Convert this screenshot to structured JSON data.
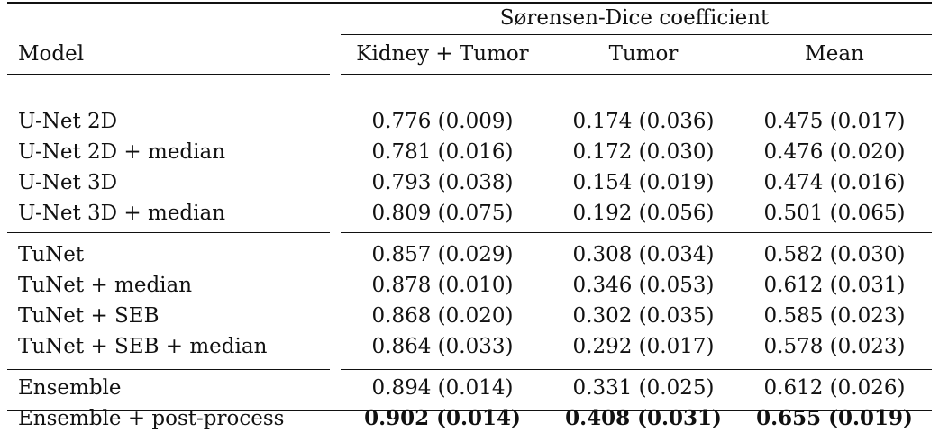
{
  "table": {
    "group_header": "Sørensen-Dice coefficient",
    "columns": [
      "Model",
      "Kidney + Tumor",
      "Tumor",
      "Mean"
    ],
    "groups": [
      [
        {
          "model": "U-Net 2D",
          "kidney_tumor": "0.776 (0.009)",
          "tumor": "0.174 (0.036)",
          "mean": "0.475 (0.017)"
        },
        {
          "model": "U-Net 2D + median",
          "kidney_tumor": "0.781 (0.016)",
          "tumor": "0.172 (0.030)",
          "mean": "0.476 (0.020)"
        },
        {
          "model": "U-Net 3D",
          "kidney_tumor": "0.793 (0.038)",
          "tumor": "0.154 (0.019)",
          "mean": "0.474 (0.016)"
        },
        {
          "model": "U-Net 3D + median",
          "kidney_tumor": "0.809 (0.075)",
          "tumor": "0.192 (0.056)",
          "mean": "0.501 (0.065)"
        }
      ],
      [
        {
          "model": "TuNet",
          "kidney_tumor": "0.857 (0.029)",
          "tumor": "0.308 (0.034)",
          "mean": "0.582 (0.030)"
        },
        {
          "model": "TuNet + median",
          "kidney_tumor": "0.878 (0.010)",
          "tumor": "0.346 (0.053)",
          "mean": "0.612 (0.031)"
        },
        {
          "model": "TuNet + SEB",
          "kidney_tumor": "0.868 (0.020)",
          "tumor": "0.302 (0.035)",
          "mean": "0.585 (0.023)"
        },
        {
          "model": "TuNet + SEB + median",
          "kidney_tumor": "0.864 (0.033)",
          "tumor": "0.292 (0.017)",
          "mean": "0.578 (0.023)"
        }
      ],
      [
        {
          "model": "Ensemble",
          "kidney_tumor": "0.894 (0.014)",
          "tumor": "0.331 (0.025)",
          "mean": "0.612 (0.026)"
        },
        {
          "model": "Ensemble + post-process",
          "kidney_tumor": "0.902 (0.014)",
          "tumor": "0.408 (0.031)",
          "mean": "0.655 (0.019)",
          "bold": true
        }
      ]
    ]
  }
}
